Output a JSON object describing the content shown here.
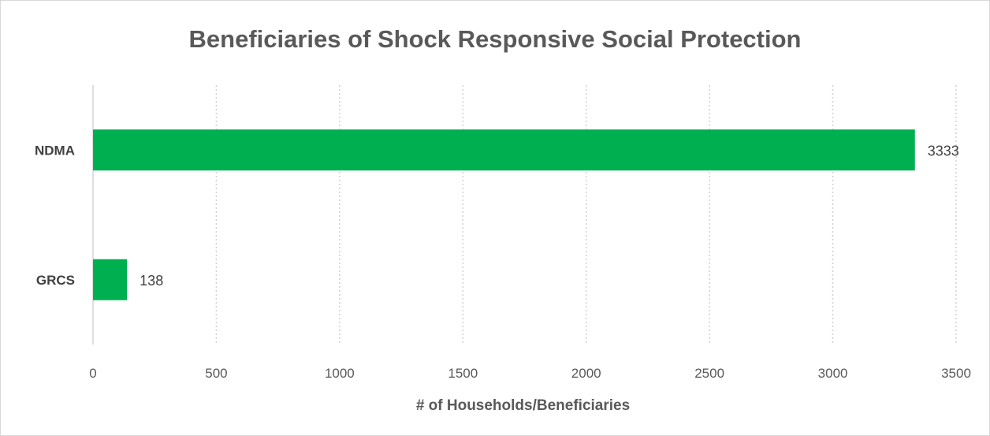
{
  "chart_data": {
    "type": "bar",
    "orientation": "horizontal",
    "title": "Beneficiaries of Shock Responsive Social Protection",
    "xlabel": "# of Households/Beneficiaries",
    "ylabel": "",
    "categories": [
      "NDMA",
      "GRCS"
    ],
    "values": [
      3333,
      138
    ],
    "xlim": [
      0,
      3500
    ],
    "xticks": [
      "0",
      "500",
      "1000",
      "1500",
      "2000",
      "2500",
      "3000",
      "3500"
    ],
    "bar_color": "#00b050",
    "grid": "vertical dotted",
    "legend": "none"
  }
}
